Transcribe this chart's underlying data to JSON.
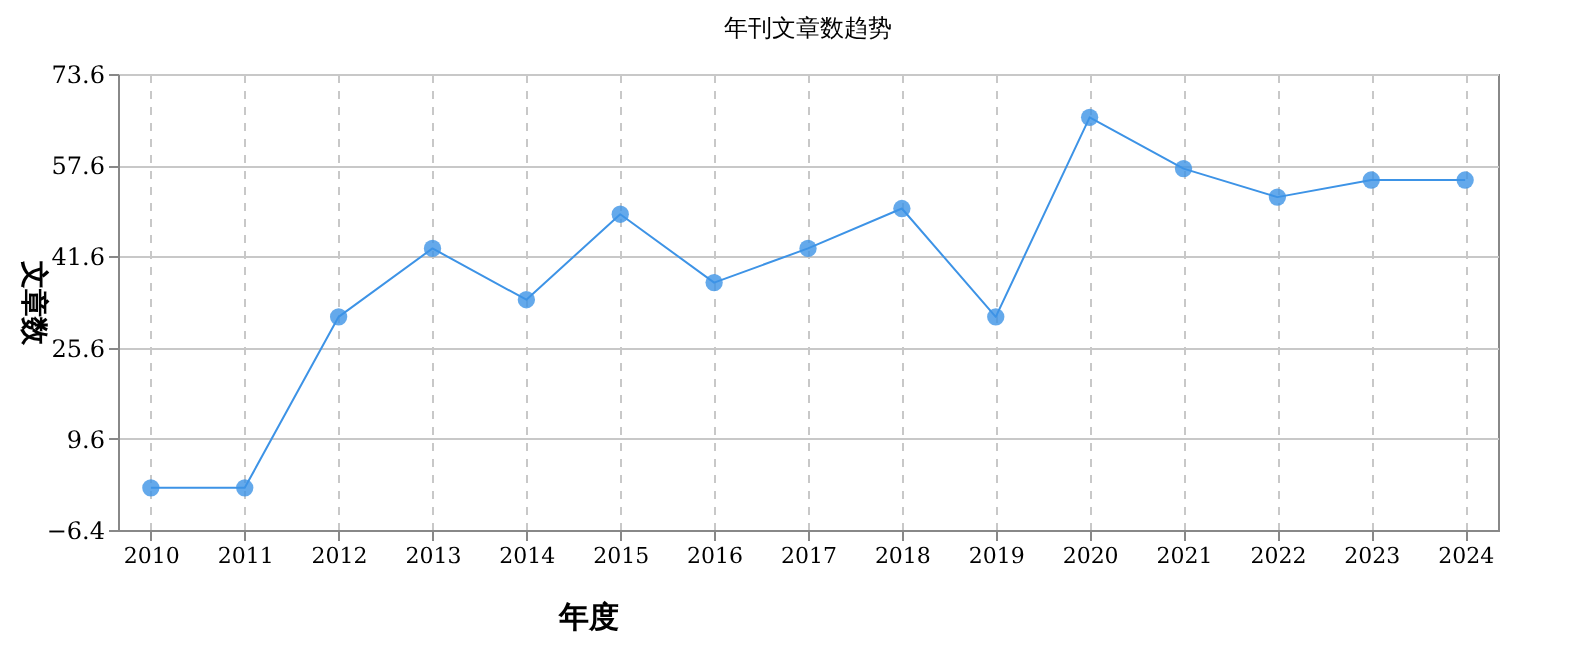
{
  "chart_data": {
    "type": "line",
    "title": "年刊文章数趋势",
    "xlabel": "年度",
    "ylabel": "文章数",
    "categories": [
      "2010",
      "2011",
      "2012",
      "2013",
      "2014",
      "2015",
      "2016",
      "2017",
      "2018",
      "2019",
      "2020",
      "2021",
      "2022",
      "2023",
      "2024"
    ],
    "series": [
      {
        "color": "#3d93e6",
        "values": [
          1,
          1,
          31,
          43,
          34,
          49,
          37,
          43,
          50,
          31,
          66,
          57,
          52,
          55,
          55
        ]
      }
    ],
    "ylim": [
      -6.4,
      73.6
    ],
    "yticks": [
      -6.4,
      9.6,
      25.6,
      41.6,
      57.6,
      73.6
    ],
    "grid": true,
    "marker": "circle",
    "line_style": "solid"
  }
}
